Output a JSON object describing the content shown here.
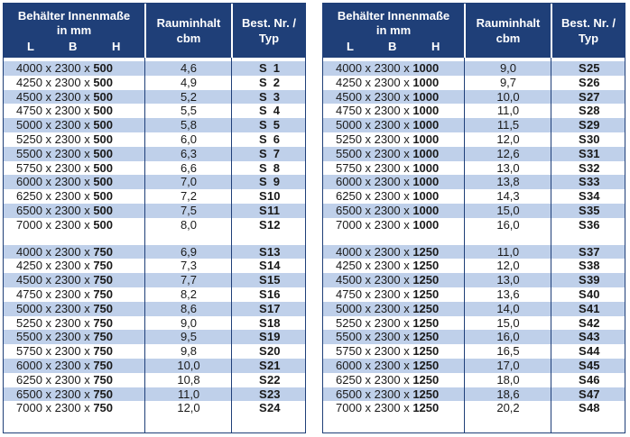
{
  "header": {
    "dim_line1": "Behälter Innenmaße",
    "dim_line2": "in mm",
    "dim_l": "L",
    "dim_b": "B",
    "dim_h": "H",
    "vol_line1": "Rauminhalt",
    "vol_line2": "cbm",
    "nr_line1": "Best. Nr. /",
    "nr_line2": "Typ"
  },
  "colors": {
    "header_bg": "#1f3f78",
    "stripe": "#bfd0ea"
  },
  "left_table": {
    "groups": [
      [
        {
          "l": "4000",
          "b": "2300",
          "h": "500",
          "cbm": "4,6",
          "prefix": "S",
          "nr": "1"
        },
        {
          "l": "4250",
          "b": "2300",
          "h": "500",
          "cbm": "4,9",
          "prefix": "S",
          "nr": "2"
        },
        {
          "l": "4500",
          "b": "2300",
          "h": "500",
          "cbm": "5,2",
          "prefix": "S",
          "nr": "3"
        },
        {
          "l": "4750",
          "b": "2300",
          "h": "500",
          "cbm": "5,5",
          "prefix": "S",
          "nr": "4"
        },
        {
          "l": "5000",
          "b": "2300",
          "h": "500",
          "cbm": "5,8",
          "prefix": "S",
          "nr": "5"
        },
        {
          "l": "5250",
          "b": "2300",
          "h": "500",
          "cbm": "6,0",
          "prefix": "S",
          "nr": "6"
        },
        {
          "l": "5500",
          "b": "2300",
          "h": "500",
          "cbm": "6,3",
          "prefix": "S",
          "nr": "7"
        },
        {
          "l": "5750",
          "b": "2300",
          "h": "500",
          "cbm": "6,6",
          "prefix": "S",
          "nr": "8"
        },
        {
          "l": "6000",
          "b": "2300",
          "h": "500",
          "cbm": "7,0",
          "prefix": "S",
          "nr": "9"
        },
        {
          "l": "6250",
          "b": "2300",
          "h": "500",
          "cbm": "7,2",
          "prefix": "S",
          "nr": "10"
        },
        {
          "l": "6500",
          "b": "2300",
          "h": "500",
          "cbm": "7,5",
          "prefix": "S",
          "nr": "11"
        },
        {
          "l": "7000",
          "b": "2300",
          "h": "500",
          "cbm": "8,0",
          "prefix": "S",
          "nr": "12"
        }
      ],
      [
        {
          "l": "4000",
          "b": "2300",
          "h": "750",
          "cbm": "6,9",
          "prefix": "S",
          "nr": "13"
        },
        {
          "l": "4250",
          "b": "2300",
          "h": "750",
          "cbm": "7,3",
          "prefix": "S",
          "nr": "14"
        },
        {
          "l": "4500",
          "b": "2300",
          "h": "750",
          "cbm": "7,7",
          "prefix": "S",
          "nr": "15"
        },
        {
          "l": "4750",
          "b": "2300",
          "h": "750",
          "cbm": "8,2",
          "prefix": "S",
          "nr": "16"
        },
        {
          "l": "5000",
          "b": "2300",
          "h": "750",
          "cbm": "8,6",
          "prefix": "S",
          "nr": "17"
        },
        {
          "l": "5250",
          "b": "2300",
          "h": "750",
          "cbm": "9,0",
          "prefix": "S",
          "nr": "18"
        },
        {
          "l": "5500",
          "b": "2300",
          "h": "750",
          "cbm": "9,5",
          "prefix": "S",
          "nr": "19"
        },
        {
          "l": "5750",
          "b": "2300",
          "h": "750",
          "cbm": "9,8",
          "prefix": "S",
          "nr": "20"
        },
        {
          "l": "6000",
          "b": "2300",
          "h": "750",
          "cbm": "10,0",
          "prefix": "S",
          "nr": "21"
        },
        {
          "l": "6250",
          "b": "2300",
          "h": "750",
          "cbm": "10,8",
          "prefix": "S",
          "nr": "22"
        },
        {
          "l": "6500",
          "b": "2300",
          "h": "750",
          "cbm": "11,0",
          "prefix": "S",
          "nr": "23"
        },
        {
          "l": "7000",
          "b": "2300",
          "h": "750",
          "cbm": "12,0",
          "prefix": "S",
          "nr": "24"
        }
      ]
    ]
  },
  "right_table": {
    "groups": [
      [
        {
          "l": "4000",
          "b": "2300",
          "h": "1000",
          "cbm": "9,0",
          "prefix": "S",
          "nr": "25"
        },
        {
          "l": "4250",
          "b": "2300",
          "h": "1000",
          "cbm": "9,7",
          "prefix": "S",
          "nr": "26"
        },
        {
          "l": "4500",
          "b": "2300",
          "h": "1000",
          "cbm": "10,0",
          "prefix": "S",
          "nr": "27"
        },
        {
          "l": "4750",
          "b": "2300",
          "h": "1000",
          "cbm": "11,0",
          "prefix": "S",
          "nr": "28"
        },
        {
          "l": "5000",
          "b": "2300",
          "h": "1000",
          "cbm": "11,5",
          "prefix": "S",
          "nr": "29"
        },
        {
          "l": "5250",
          "b": "2300",
          "h": "1000",
          "cbm": "12,0",
          "prefix": "S",
          "nr": "30"
        },
        {
          "l": "5500",
          "b": "2300",
          "h": "1000",
          "cbm": "12,6",
          "prefix": "S",
          "nr": "31"
        },
        {
          "l": "5750",
          "b": "2300",
          "h": "1000",
          "cbm": "13,0",
          "prefix": "S",
          "nr": "32"
        },
        {
          "l": "6000",
          "b": "2300",
          "h": "1000",
          "cbm": "13,8",
          "prefix": "S",
          "nr": "33"
        },
        {
          "l": "6250",
          "b": "2300",
          "h": "1000",
          "cbm": "14,3",
          "prefix": "S",
          "nr": "34"
        },
        {
          "l": "6500",
          "b": "2300",
          "h": "1000",
          "cbm": "15,0",
          "prefix": "S",
          "nr": "35"
        },
        {
          "l": "7000",
          "b": "2300",
          "h": "1000",
          "cbm": "16,0",
          "prefix": "S",
          "nr": "36"
        }
      ],
      [
        {
          "l": "4000",
          "b": "2300",
          "h": "1250",
          "cbm": "11,0",
          "prefix": "S",
          "nr": "37"
        },
        {
          "l": "4250",
          "b": "2300",
          "h": "1250",
          "cbm": "12,0",
          "prefix": "S",
          "nr": "38"
        },
        {
          "l": "4500",
          "b": "2300",
          "h": "1250",
          "cbm": "13,0",
          "prefix": "S",
          "nr": "39"
        },
        {
          "l": "4750",
          "b": "2300",
          "h": "1250",
          "cbm": "13,6",
          "prefix": "S",
          "nr": "40"
        },
        {
          "l": "5000",
          "b": "2300",
          "h": "1250",
          "cbm": "14,0",
          "prefix": "S",
          "nr": "41"
        },
        {
          "l": "5250",
          "b": "2300",
          "h": "1250",
          "cbm": "15,0",
          "prefix": "S",
          "nr": "42"
        },
        {
          "l": "5500",
          "b": "2300",
          "h": "1250",
          "cbm": "16,0",
          "prefix": "S",
          "nr": "43"
        },
        {
          "l": "5750",
          "b": "2300",
          "h": "1250",
          "cbm": "16,5",
          "prefix": "S",
          "nr": "44"
        },
        {
          "l": "6000",
          "b": "2300",
          "h": "1250",
          "cbm": "17,0",
          "prefix": "S",
          "nr": "45"
        },
        {
          "l": "6250",
          "b": "2300",
          "h": "1250",
          "cbm": "18,0",
          "prefix": "S",
          "nr": "46"
        },
        {
          "l": "6500",
          "b": "2300",
          "h": "1250",
          "cbm": "18,6",
          "prefix": "S",
          "nr": "47"
        },
        {
          "l": "7000",
          "b": "2300",
          "h": "1250",
          "cbm": "20,2",
          "prefix": "S",
          "nr": "48"
        }
      ]
    ]
  }
}
